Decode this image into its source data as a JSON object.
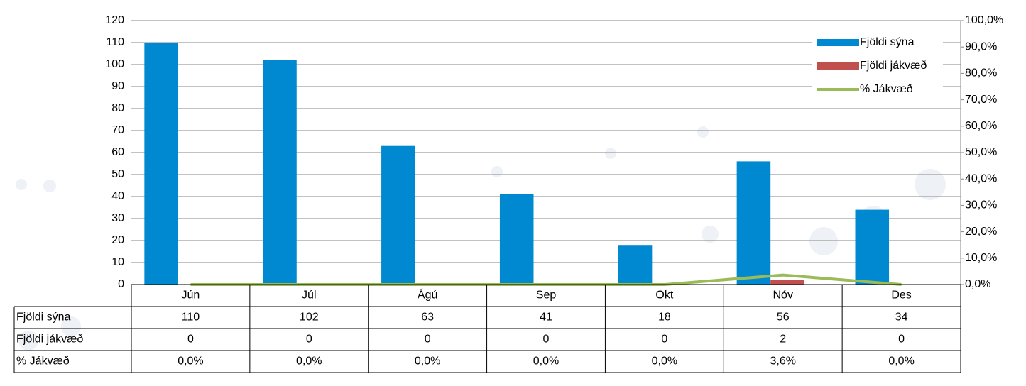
{
  "chart_data": {
    "type": "bar",
    "categories": [
      "Jún",
      "Júl",
      "Ágú",
      "Sep",
      "Okt",
      "Nóv",
      "Des"
    ],
    "series": [
      {
        "name": "Fjöldi sýna",
        "color": "#0088d1",
        "values": [
          110,
          102,
          63,
          41,
          18,
          56,
          34
        ]
      },
      {
        "name": "Fjöldi jákvæð",
        "color": "#c0504d",
        "values": [
          0,
          0,
          0,
          0,
          0,
          2,
          0
        ]
      },
      {
        "name": "% Jákvæð",
        "color": "#9bbb59",
        "type": "line",
        "axis": "y2",
        "values": [
          0,
          0,
          0,
          0,
          0,
          3.6,
          0
        ],
        "value_labels": [
          "0,0%",
          "0,0%",
          "0,0%",
          "0,0%",
          "0,0%",
          "3,6%",
          "0,0%"
        ]
      }
    ],
    "ylim": [
      0,
      120
    ],
    "yticks": [
      0,
      10,
      20,
      30,
      40,
      50,
      60,
      70,
      80,
      90,
      100,
      110,
      120
    ],
    "y2lim": [
      0,
      100
    ],
    "y2ticks": [
      {
        "value": 0,
        "label": "0,0%"
      },
      {
        "value": 10,
        "label": "10,0%"
      },
      {
        "value": 20,
        "label": "20,0%"
      },
      {
        "value": 30,
        "label": "30,0%"
      },
      {
        "value": 40,
        "label": "40,0%"
      },
      {
        "value": 50,
        "label": "50,0%"
      },
      {
        "value": 60,
        "label": "60,0%"
      },
      {
        "value": 70,
        "label": "70,0%"
      },
      {
        "value": 80,
        "label": "80,0%"
      },
      {
        "value": 90,
        "label": "90,0%"
      },
      {
        "value": 100,
        "label": "100,0%"
      }
    ],
    "grid": true,
    "legend": "top-right",
    "data_table": true
  }
}
